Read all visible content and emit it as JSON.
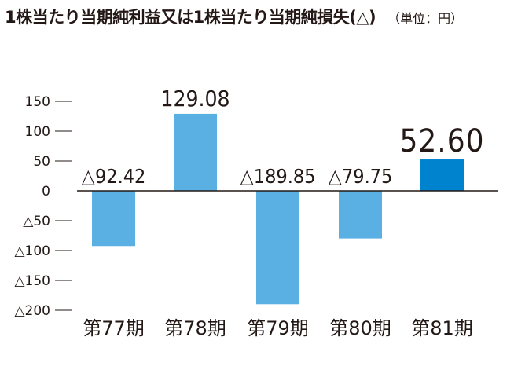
{
  "title": "1株当たり当期純利益又は1株当たり当期純損失(△)",
  "unit": "（単位：円）",
  "colors": {
    "bar": "#5bb0e3",
    "highlight": "#0083cf",
    "text": "#231815"
  },
  "chart_data": {
    "type": "bar",
    "title": "1株当たり当期純利益又は1株当たり当期純損失(△)",
    "unit": "円",
    "categories": [
      "第77期",
      "第78期",
      "第79期",
      "第80期",
      "第81期"
    ],
    "values": [
      -92.42,
      129.08,
      -189.85,
      -79.75,
      52.6
    ],
    "value_labels": [
      "△92.42",
      "129.08",
      "△189.85",
      "△79.75",
      "52.60"
    ],
    "highlight_index": 4,
    "yticks": [
      150,
      100,
      50,
      0,
      -50,
      -100,
      -150,
      -200
    ],
    "ytick_labels": [
      "150",
      "100",
      "50",
      "0",
      "△50",
      "△100",
      "△150",
      "△200"
    ],
    "ylim": [
      -200,
      150
    ],
    "grid": false,
    "legend": "none"
  }
}
